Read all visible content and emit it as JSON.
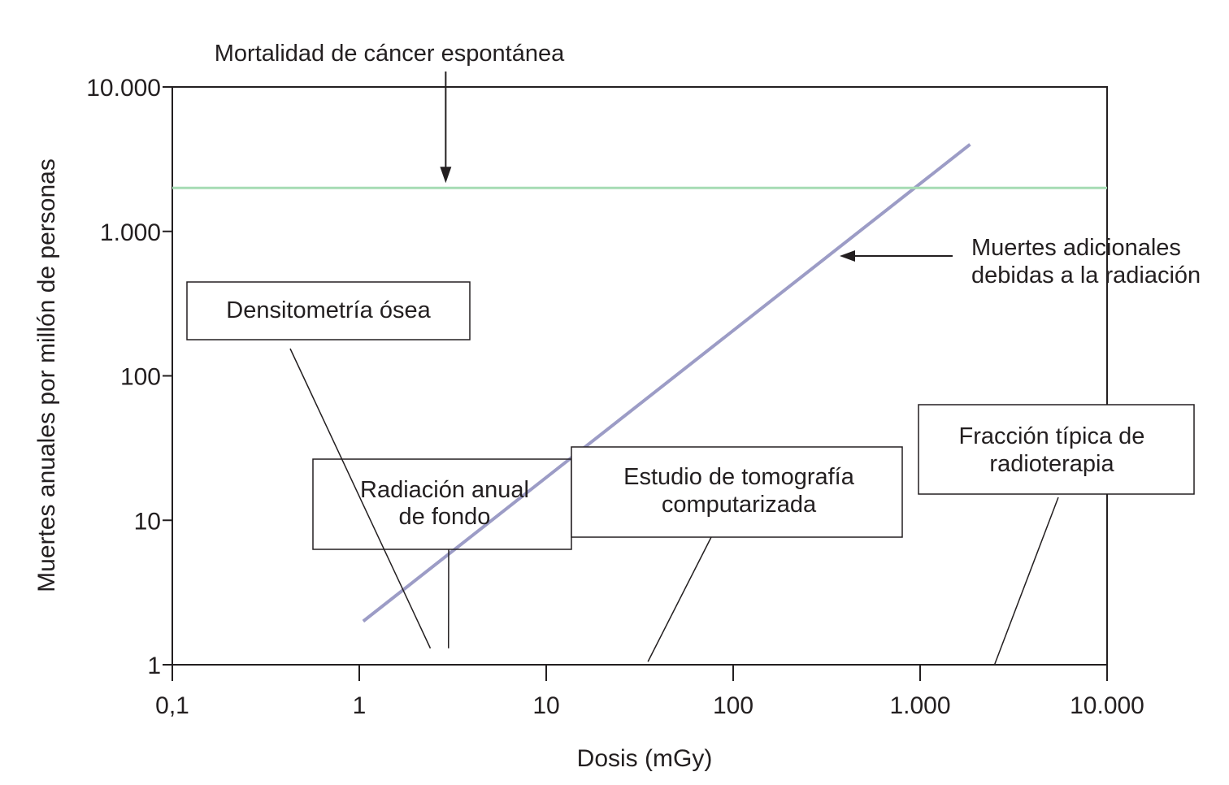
{
  "chart_data": {
    "type": "line",
    "xlabel": "Dosis (mGy)",
    "ylabel": "Muertes anuales por millón de personas",
    "x_scale": "log",
    "y_scale": "log",
    "xlim": [
      0.1,
      10000
    ],
    "ylim": [
      1,
      10000
    ],
    "x_ticks": [
      0.1,
      1,
      10,
      100,
      1000,
      10000
    ],
    "x_tick_labels": [
      "0,1",
      "1",
      "10",
      "100",
      "1.000",
      "10.000"
    ],
    "y_ticks": [
      1,
      10,
      100,
      1000,
      10000
    ],
    "y_tick_labels": [
      "1",
      "10",
      "100",
      "1.000",
      "10.000"
    ],
    "grid": false,
    "series": [
      {
        "name": "Muertes adicionales debidas a la radiación",
        "color": "#9c9cc6",
        "x": [
          1.05,
          1850
        ],
        "y": [
          2,
          4000
        ]
      },
      {
        "name": "Mortalidad de cáncer espontánea",
        "color": "#a6dcb4",
        "x": [
          0.1,
          10000
        ],
        "y": [
          2000,
          2000
        ]
      }
    ],
    "annotations": {
      "spontaneous": {
        "label": "Mortalidad de cáncer espontánea",
        "arrow_x": 2.9
      },
      "additional_deaths": {
        "lines": [
          "Muertes adicionales",
          "debidas a la radiación"
        ],
        "arrow_tip": [
          360,
          780
        ]
      },
      "boxes": [
        {
          "key": "densitometry",
          "lines": [
            "Densitometría ósea"
          ],
          "pointer_to": [
            2.4,
            1.3
          ]
        },
        {
          "key": "background",
          "lines": [
            "Radiación anual",
            "de fondo"
          ],
          "pointer_to": [
            3.0,
            1.3
          ]
        },
        {
          "key": "ct",
          "lines": [
            "Estudio de tomografía",
            "computarizada"
          ],
          "pointer_to": [
            35,
            1.05
          ]
        },
        {
          "key": "radiotherapy",
          "lines": [
            "Fracción típica de",
            "radioterapia"
          ],
          "pointer_to": [
            2500,
            1.0
          ]
        }
      ]
    }
  }
}
